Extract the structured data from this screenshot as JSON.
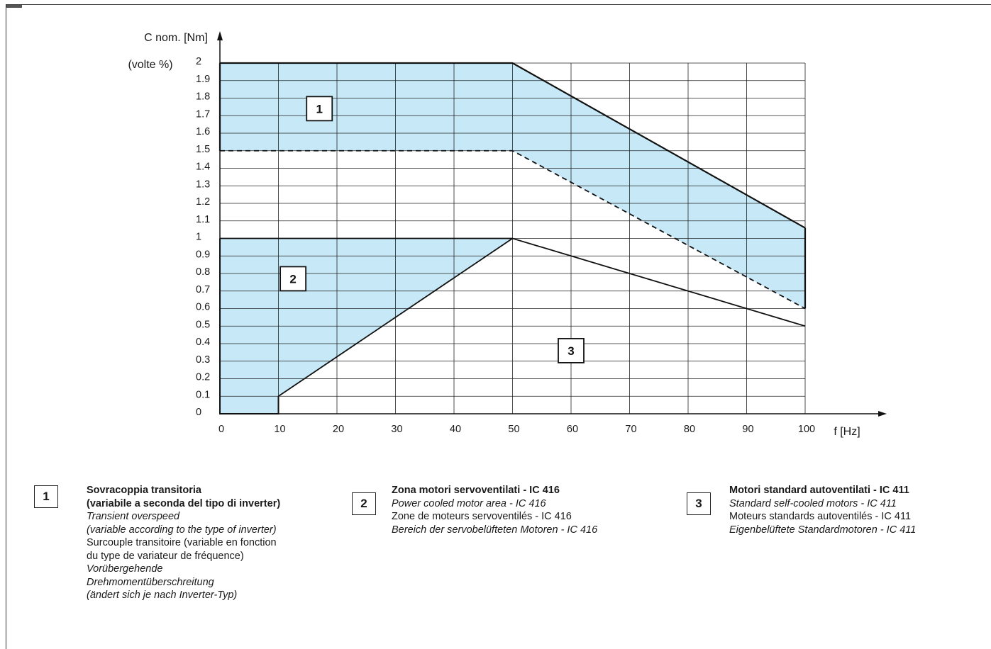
{
  "chart_data": {
    "type": "area",
    "xlabel": "f [Hz]",
    "ylabel": "C nom. [Nm]",
    "ylabel_sub": "(volte %)",
    "xlim": [
      0,
      100
    ],
    "ylim": [
      0,
      2
    ],
    "x_ticks": [
      "0",
      "10",
      "20",
      "30",
      "40",
      "50",
      "60",
      "70",
      "80",
      "90",
      "100"
    ],
    "y_ticks": [
      "0",
      "0.1",
      "0.2",
      "0.3",
      "0.4",
      "0.5",
      "0.6",
      "0.7",
      "0.8",
      "0.9",
      "1",
      "1.1",
      "1.2",
      "1.3",
      "1.4",
      "1.5",
      "1.6",
      "1.7",
      "1.8",
      "1.9",
      "2"
    ],
    "grid": true,
    "fill_color": "#c6e8f7",
    "regions": [
      {
        "label": "1",
        "upper": [
          [
            0,
            2.0
          ],
          [
            50,
            2.0
          ],
          [
            100,
            1.06
          ]
        ],
        "lower": [
          [
            0,
            1.5
          ],
          [
            50,
            1.5
          ],
          [
            100,
            0.6
          ]
        ],
        "lower_style": "dashed"
      },
      {
        "label": "2",
        "polygon": [
          [
            0,
            0
          ],
          [
            10,
            0
          ],
          [
            10,
            0.1
          ],
          [
            50,
            1.0
          ],
          [
            0,
            1.0
          ]
        ]
      }
    ],
    "lines": [
      {
        "points": [
          [
            0,
            1.0
          ],
          [
            50,
            1.0
          ],
          [
            100,
            0.5
          ]
        ],
        "style": "solid"
      },
      {
        "points": [
          [
            10,
            0.1
          ],
          [
            50,
            1.0
          ]
        ],
        "style": "solid"
      }
    ],
    "zone_labels": [
      {
        "label": "1",
        "x": 17,
        "y": 1.74
      },
      {
        "label": "2",
        "x": 12.5,
        "y": 0.77
      },
      {
        "label": "3",
        "x": 60,
        "y": 0.36
      }
    ]
  },
  "legend": [
    {
      "number": "1",
      "lines": [
        {
          "style": "b",
          "text": "Sovracoppia transitoria"
        },
        {
          "style": "b",
          "text": "(variabile a seconda del tipo di inverter)"
        },
        {
          "style": "i",
          "text": "Transient overspeed"
        },
        {
          "style": "i",
          "text": "(variable according to the type of inverter)"
        },
        {
          "style": "n",
          "text": "Surcouple transitoire (variable en fonction"
        },
        {
          "style": "n",
          "text": "du type de variateur de fréquence)"
        },
        {
          "style": "i",
          "text": "Vorübergehende"
        },
        {
          "style": "i",
          "text": "Drehmomentüberschreitung"
        },
        {
          "style": "i",
          "text": "(ändert sich je nach Inverter-Typ)"
        }
      ]
    },
    {
      "number": "2",
      "lines": [
        {
          "style": "b",
          "text": "Zona motori servoventilati - IC 416"
        },
        {
          "style": "i",
          "text": "Power cooled motor area - IC 416"
        },
        {
          "style": "n",
          "text": "Zone de moteurs servoventilés - IC 416"
        },
        {
          "style": "i",
          "text": "Bereich der servobelüfteten Motoren - IC 416"
        }
      ]
    },
    {
      "number": "3",
      "lines": [
        {
          "style": "b",
          "text": "Motori standard autoventilati - IC 411"
        },
        {
          "style": "i",
          "text": "Standard self-cooled motors - IC 411"
        },
        {
          "style": "n",
          "text": "Moteurs standards autoventilés - IC 411"
        },
        {
          "style": "i",
          "text": "Eigenbelüftete Standardmotoren - IC 411"
        }
      ]
    }
  ]
}
